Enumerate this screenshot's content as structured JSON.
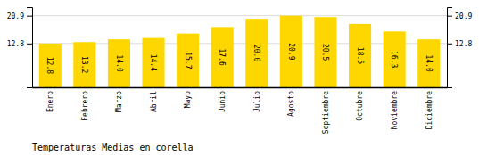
{
  "chart_data": {
    "type": "bar",
    "title": "Temperaturas Medias en corella",
    "categories": [
      "Enero",
      "Febrero",
      "Marzo",
      "Abril",
      "Mayo",
      "Junio",
      "Julio",
      "Agosto",
      "Septiembre",
      "Octubre",
      "Noviembre",
      "Diciembre"
    ],
    "values": [
      12.8,
      13.2,
      14.0,
      14.4,
      15.7,
      17.6,
      20.0,
      20.9,
      20.5,
      18.5,
      16.3,
      14.0
    ],
    "value_labels": [
      "12.8",
      "13.2",
      "14.0",
      "14.4",
      "15.7",
      "17.6",
      "20.0",
      "20.9",
      "20.5",
      "18.5",
      "16.3",
      "14.0"
    ],
    "data_labels": true,
    "color": "#FFD700",
    "ylim": [
      0,
      23.408
    ],
    "yticks": [
      12.8,
      20.9
    ],
    "y2lim": [
      0,
      23.408
    ],
    "y2ticks": [
      12.8,
      20.9
    ],
    "grid": true
  }
}
